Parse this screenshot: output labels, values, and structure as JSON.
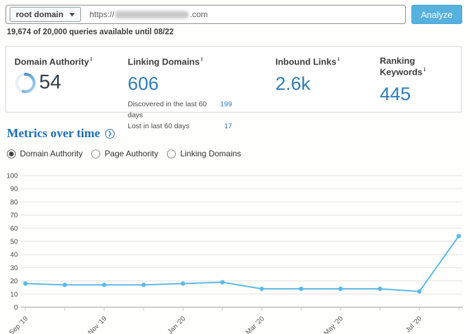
{
  "search_bar": {
    "scope_dropdown_label": "root domain",
    "url_prefix": "https://",
    "url_suffix": ".com",
    "analyze_label": "Analyze"
  },
  "quota_text": "19,674 of 20,000 queries available until 08/22",
  "metrics_panel": {
    "domain_authority": {
      "label": "Domain Authority",
      "info": "i",
      "value": "54",
      "gauge_percent": 54
    },
    "linking_domains": {
      "label": "Linking Domains",
      "info": "i",
      "value": "606",
      "rows": [
        {
          "label": "Discovered in the last 60 days",
          "value": "199"
        },
        {
          "label": "Lost in last 60 days",
          "value": "17"
        }
      ]
    },
    "inbound_links": {
      "label": "Inbound Links",
      "info": "i",
      "value": "2.6k"
    },
    "ranking_keywords": {
      "label": "Ranking Keywords",
      "info": "i",
      "value": "445"
    }
  },
  "section_title": "Metrics over time",
  "radios": [
    {
      "label": "Domain Authority",
      "selected": true
    },
    {
      "label": "Page Authority",
      "selected": false
    },
    {
      "label": "Linking Domains",
      "selected": false
    }
  ],
  "chart_data": {
    "type": "line",
    "title": "",
    "series": [
      {
        "name": "Domain Authority",
        "values": [
          18,
          17,
          17,
          17,
          18,
          19,
          14,
          14,
          14,
          14,
          12,
          54
        ]
      }
    ],
    "x_tick_labels": [
      "Sep '19",
      "",
      "Nov '19",
      "",
      "Jan '20",
      "",
      "Mar '20",
      "",
      "May '20",
      "",
      "Jul '20",
      ""
    ],
    "y_ticks": [
      0,
      10,
      20,
      30,
      40,
      50,
      60,
      70,
      80,
      90,
      100
    ],
    "ylim": [
      0,
      100
    ],
    "grid": true,
    "legend": "none",
    "line_color": "#5bb9e8"
  },
  "colors": {
    "accent_blue": "#2e7cb8",
    "heading_blue": "#1e6fb2",
    "chart_line_blue": "#5bb9e8",
    "analyze_button_blue": "#55b1de"
  }
}
